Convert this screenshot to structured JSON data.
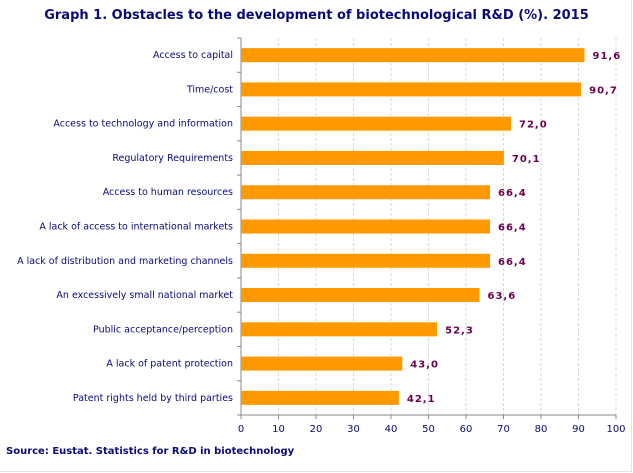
{
  "chart_data": {
    "type": "bar",
    "orientation": "horizontal",
    "title": "Graph 1. Obstacles to the development of biotechnological R&D (%). 2015",
    "categories": [
      "Access to capital",
      "Time/cost",
      "Access to technology and information",
      "Regulatory Requirements",
      "Access to human resources",
      "A lack of access to international markets",
      "A lack of distribution and marketing channels",
      "An excessively small national market",
      "Public acceptance/perception",
      "A lack of patent protection",
      "Patent rights held by third parties"
    ],
    "values": [
      91.6,
      90.7,
      72.0,
      70.1,
      66.4,
      66.4,
      66.4,
      63.6,
      52.3,
      43.0,
      42.1
    ],
    "data_labels": [
      "91,6",
      "90,7",
      "72,0",
      "70,1",
      "66,4",
      "66,4",
      "66,4",
      "63,6",
      "52,3",
      "43,0",
      "42,1"
    ],
    "xlim": [
      0,
      100
    ],
    "x_ticks": [
      "0",
      "10",
      "20",
      "30",
      "40",
      "50",
      "60",
      "70",
      "80",
      "90",
      "100"
    ],
    "grid": "vertical dashed",
    "legend": "none",
    "colors": {
      "bar": "#ff9900",
      "label": "#6a0050",
      "text": "#0a0a78"
    }
  },
  "source": "Source: Eustat. Statistics for R&D in biotechnology"
}
